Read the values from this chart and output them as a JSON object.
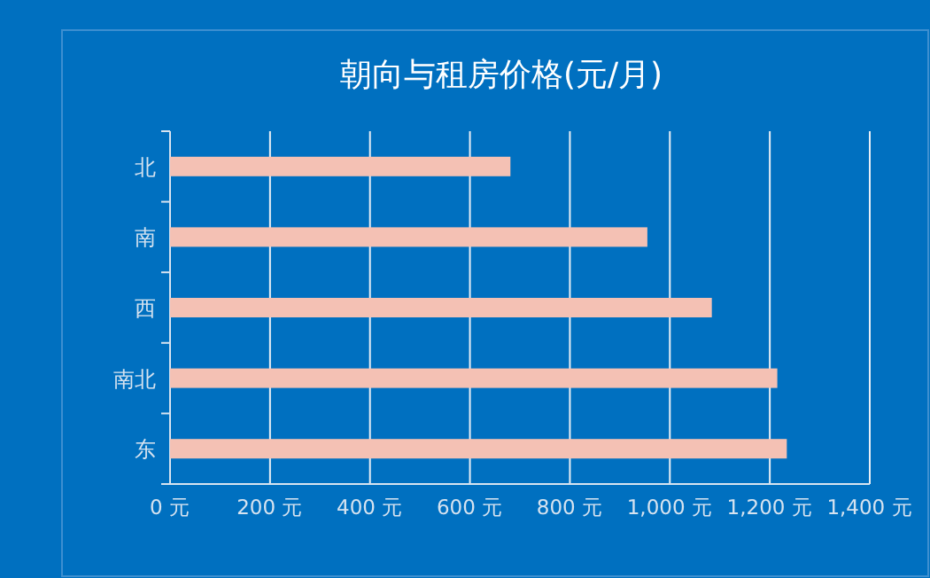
{
  "chart_data": {
    "type": "bar",
    "orientation": "horizontal",
    "title": "朝向与租房价格(元/月)",
    "categories": [
      "北",
      "南",
      "西",
      "南北",
      "东"
    ],
    "values": [
      681,
      955,
      1084,
      1215,
      1234
    ],
    "color": "#f4c1b4",
    "xlim": [
      0,
      1400
    ],
    "xticks": [
      {
        "value": 0,
        "label": "0 元"
      },
      {
        "value": 200,
        "label": "200 元"
      },
      {
        "value": 400,
        "label": "400 元"
      },
      {
        "value": 600,
        "label": "600 元"
      },
      {
        "value": 800,
        "label": "800 元"
      },
      {
        "value": 1000,
        "label": "1,000 元"
      },
      {
        "value": 1200,
        "label": "1,200 元"
      },
      {
        "value": 1400,
        "label": "1,400 元"
      }
    ],
    "grid": "x"
  }
}
